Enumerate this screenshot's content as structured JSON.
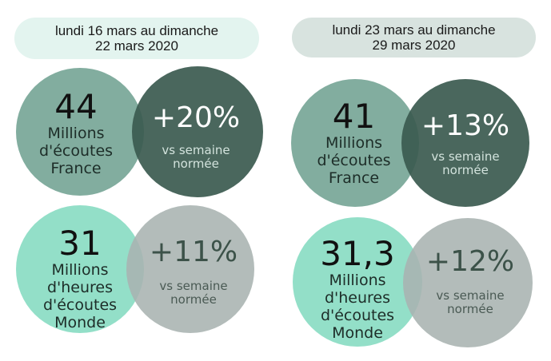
{
  "weeks": [
    {
      "period": "lundi 16 mars au dimanche 22 mars 2020",
      "france": {
        "value": "44",
        "label": [
          "Millions",
          "d'écoutes",
          "France"
        ],
        "change": "+20%",
        "vs": [
          "vs semaine",
          "normée"
        ]
      },
      "monde": {
        "value": "31",
        "label": [
          "Millions",
          "d'heures",
          "d'écoutes",
          "Monde"
        ],
        "change": "+11%",
        "vs": [
          "vs semaine",
          "normée"
        ]
      }
    },
    {
      "period": "lundi 23 mars au dimanche 29 mars 2020",
      "france": {
        "value": "41",
        "label": [
          "Millions",
          "d'écoutes",
          "France"
        ],
        "change": "+13%",
        "vs": [
          "vs semaine",
          "normée"
        ]
      },
      "monde": {
        "value": "31,3",
        "label": [
          "Millions",
          "d'heures",
          "d'écoutes",
          "Monde"
        ],
        "change": "+12%",
        "vs": [
          "vs semaine",
          "normée"
        ]
      }
    }
  ],
  "colors": {
    "pill1": "#e3f4ef",
    "pill2": "#d8e3df",
    "france_value": "#82ad9f",
    "france_change": "#4a655b",
    "monde_value": "#93dfc8",
    "monde_change": "#b3bcb9"
  }
}
